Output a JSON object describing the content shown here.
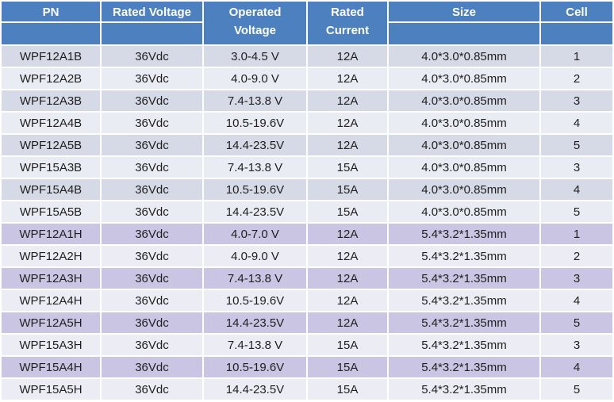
{
  "table": {
    "columns": [
      {
        "key": "pn",
        "label": "PN"
      },
      {
        "key": "rated_voltage",
        "label": "Rated Voltage"
      },
      {
        "key": "operated_voltage",
        "label": "Operated Voltage"
      },
      {
        "key": "rated_current",
        "label": "Rated Current"
      },
      {
        "key": "size",
        "label": "Size"
      },
      {
        "key": "cell",
        "label": "Cell"
      }
    ],
    "rows": [
      {
        "tint": "blue",
        "cells": [
          "WPF12A1B",
          "36Vdc",
          "3.0-4.5 V",
          "12A",
          "4.0*3.0*0.85mm",
          "1"
        ]
      },
      {
        "tint": "blue",
        "cells": [
          "WPF12A2B",
          "36Vdc",
          "4.0-9.0 V",
          "12A",
          "4.0*3.0*0.85mm",
          "2"
        ]
      },
      {
        "tint": "blue",
        "cells": [
          "WPF12A3B",
          "36Vdc",
          "7.4-13.8 V",
          "12A",
          "4.0*3.0*0.85mm",
          "3"
        ]
      },
      {
        "tint": "blue",
        "cells": [
          "WPF12A4B",
          "36Vdc",
          "10.5-19.6V",
          "12A",
          "4.0*3.0*0.85mm",
          "4"
        ]
      },
      {
        "tint": "blue",
        "cells": [
          "WPF12A5B",
          "36Vdc",
          "14.4-23.5V",
          "12A",
          "4.0*3.0*0.85mm",
          "5"
        ]
      },
      {
        "tint": "blue",
        "cells": [
          "WPF15A3B",
          "36Vdc",
          "7.4-13.8 V",
          "15A",
          "4.0*3.0*0.85mm",
          "3"
        ]
      },
      {
        "tint": "blue",
        "cells": [
          "WPF15A4B",
          "36Vdc",
          "10.5-19.6V",
          "15A",
          "4.0*3.0*0.85mm",
          "4"
        ]
      },
      {
        "tint": "blue",
        "cells": [
          "WPF15A5B",
          "36Vdc",
          "14.4-23.5V",
          "15A",
          "4.0*3.0*0.85mm",
          "5"
        ]
      },
      {
        "tint": "lavender",
        "cells": [
          "WPF12A1H",
          "36Vdc",
          "4.0-7.0 V",
          "12A",
          "5.4*3.2*1.35mm",
          "1"
        ]
      },
      {
        "tint": "lavender",
        "cells": [
          "WPF12A2H",
          "36Vdc",
          "4.0-9.0 V",
          "12A",
          "5.4*3.2*1.35mm",
          "2"
        ]
      },
      {
        "tint": "lavender",
        "cells": [
          "WPF12A3H",
          "36Vdc",
          "7.4-13.8 V",
          "12A",
          "5.4*3.2*1.35mm",
          "3"
        ]
      },
      {
        "tint": "lavender",
        "cells": [
          "WPF12A4H",
          "36Vdc",
          "10.5-19.6V",
          "12A",
          "5.4*3.2*1.35mm",
          "4"
        ]
      },
      {
        "tint": "lavender",
        "cells": [
          "WPF12A5H",
          "36Vdc",
          "14.4-23.5V",
          "12A",
          "5.4*3.2*1.35mm",
          "5"
        ]
      },
      {
        "tint": "lavender",
        "cells": [
          "WPF15A3H",
          "36Vdc",
          "7.4-13.8 V",
          "15A",
          "5.4*3.2*1.35mm",
          "3"
        ]
      },
      {
        "tint": "lavender",
        "cells": [
          "WPF15A4H",
          "36Vdc",
          "10.5-19.6V",
          "15A",
          "5.4*3.2*1.35mm",
          "4"
        ]
      },
      {
        "tint": "lavender",
        "cells": [
          "WPF15A5H",
          "36Vdc",
          "14.4-23.5V",
          "15A",
          "5.4*3.2*1.35mm",
          "5"
        ]
      }
    ],
    "colors": {
      "header_bg": "#4D80BE",
      "header_text": "#FFFFFF",
      "row_blue_shaded": "#D6DAE7",
      "row_blue_light": "#EAECF3",
      "row_lavender_shaded": "#CBC5E4",
      "row_lavender_light": "#ECECF5",
      "grid": "#FFFFFF",
      "body_text": "#1F1F1F"
    }
  }
}
